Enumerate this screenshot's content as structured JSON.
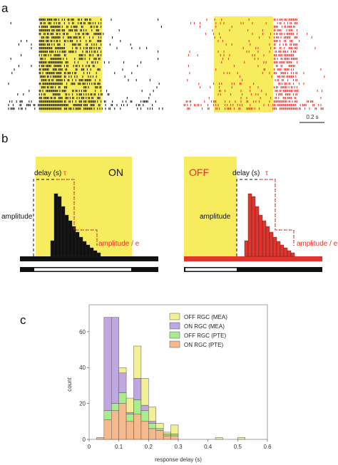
{
  "panel_labels": {
    "a": "a",
    "b": "b",
    "c": "c"
  },
  "colors": {
    "stim_yellow": "#f6ec5e",
    "on_black": "#111111",
    "off_red": "#e0342c",
    "hist_off_mea": "#f3ef96",
    "hist_on_mea": "#c1a7e2",
    "hist_off_pte": "#a9ec8e",
    "hist_on_pte": "#f6b98c"
  },
  "panel_a": {
    "scale_bar_label": "0.2 s"
  },
  "panel_b": {
    "on": {
      "title": "ON",
      "delay_label": "delay (s)",
      "tau_label": "τ",
      "amplitude_label": "amplitude",
      "amplitude_e_label": "amplitude / e"
    },
    "off": {
      "title": "OFF",
      "delay_label": "delay (s)",
      "tau_label": "τ",
      "amplitude_label": "amplitude",
      "amplitude_e_label": "amplitude / e"
    }
  },
  "chart_data": {
    "type": "bar",
    "stacked": true,
    "xlabel": "response delay (s)",
    "ylabel": "count",
    "xlim": [
      0,
      0.6
    ],
    "ylim": [
      0,
      75
    ],
    "xticks": [
      "0",
      "0.1",
      "0.2",
      "0.3",
      "0.4",
      "0.5",
      "0.6"
    ],
    "yticks": [
      "0",
      "20",
      "40",
      "60"
    ],
    "bin_width": 0.025,
    "bin_starts": [
      0.025,
      0.05,
      0.075,
      0.1,
      0.125,
      0.15,
      0.175,
      0.2,
      0.225,
      0.25,
      0.275,
      0.3,
      0.325,
      0.35,
      0.375,
      0.4,
      0.425,
      0.45,
      0.475,
      0.5,
      0.525
    ],
    "legend_position": "top-right",
    "series": [
      {
        "name": "ON RGC (PTE)",
        "color": "#f6b98c",
        "values": [
          1,
          11,
          16,
          20,
          10,
          14,
          10,
          6,
          5,
          2,
          2,
          0,
          0,
          0,
          0,
          0,
          0,
          0,
          0,
          0,
          0
        ]
      },
      {
        "name": "OFF RGC (PTE)",
        "color": "#a9ec8e",
        "values": [
          0,
          5,
          4,
          6,
          4,
          8,
          6,
          3,
          1,
          1,
          1,
          0,
          0,
          0,
          0,
          0,
          0,
          0,
          0,
          0,
          0
        ]
      },
      {
        "name": "ON RGC (MEA)",
        "color": "#c1a7e2",
        "values": [
          0,
          52,
          48,
          11,
          1,
          12,
          3,
          1,
          0,
          0,
          0,
          0,
          0,
          0,
          0,
          0,
          0,
          0,
          0,
          0,
          0
        ]
      },
      {
        "name": "OFF RGC (MEA)",
        "color": "#f3ef96",
        "values": [
          0,
          0,
          0,
          3,
          8,
          18,
          15,
          8,
          3,
          1,
          5,
          0,
          0,
          0,
          0,
          0,
          1,
          0,
          0,
          1,
          0
        ]
      }
    ]
  }
}
